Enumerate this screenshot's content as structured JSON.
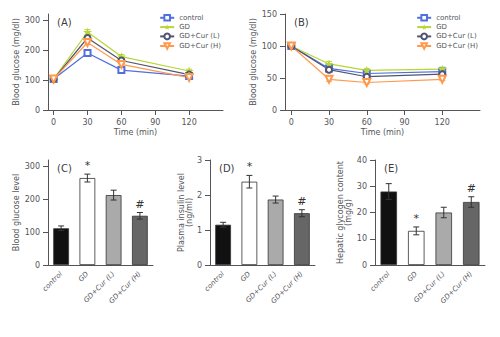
{
  "chart_data": [
    {
      "type": "line",
      "title": "(A)",
      "xlabel": "Time (min)",
      "ylabel": "Blood glucose (mg/dl)",
      "xlim": [
        -5,
        150
      ],
      "ylim": [
        0,
        320
      ],
      "xticks": [
        0,
        30,
        60,
        90,
        120
      ],
      "yticks": [
        0,
        100,
        200,
        300
      ],
      "x": [
        0,
        30,
        60,
        120
      ],
      "series": [
        {
          "name": "control",
          "marker": "square",
          "values": [
            103,
            190,
            133,
            113
          ],
          "errors": [
            3,
            8,
            5,
            5
          ]
        },
        {
          "name": "GD",
          "marker": "star",
          "values": [
            103,
            260,
            178,
            130
          ],
          "errors": [
            3,
            8,
            7,
            6
          ]
        },
        {
          "name": "GD+Cur (L)",
          "marker": "circle",
          "values": [
            103,
            240,
            165,
            118
          ],
          "errors": [
            3,
            7,
            6,
            5
          ]
        },
        {
          "name": "GD+Cur (H)",
          "marker": "triangle_down",
          "values": [
            103,
            225,
            152,
            108
          ],
          "errors": [
            3,
            6,
            6,
            4
          ]
        }
      ],
      "legend": "upper right",
      "grid": false
    },
    {
      "type": "line",
      "title": "(B)",
      "xlabel": "Time (min)",
      "ylabel": "Blood glucose (mg/dl)",
      "xlim": [
        -5,
        150
      ],
      "ylim": [
        0,
        150
      ],
      "xticks": [
        0,
        30,
        60,
        90,
        120
      ],
      "yticks": [
        0,
        50,
        100,
        150
      ],
      "x": [
        0,
        30,
        60,
        120
      ],
      "series": [
        {
          "name": "control",
          "marker": "square",
          "values": [
            100,
            65,
            57,
            60
          ],
          "errors": [
            2,
            3,
            3,
            3
          ]
        },
        {
          "name": "GD",
          "marker": "star",
          "values": [
            100,
            72,
            62,
            64
          ],
          "errors": [
            2,
            4,
            3,
            3
          ]
        },
        {
          "name": "GD+Cur (L)",
          "marker": "circle",
          "values": [
            100,
            63,
            52,
            56
          ],
          "errors": [
            2,
            3,
            3,
            3
          ]
        },
        {
          "name": "GD+Cur (H)",
          "marker": "triangle_down",
          "values": [
            100,
            48,
            43,
            48
          ],
          "errors": [
            2,
            3,
            2,
            2
          ]
        }
      ],
      "legend": "upper right",
      "grid": false
    },
    {
      "type": "bar",
      "title": "(C)",
      "ylabel": "Blood glucose level",
      "ylim": [
        0,
        320
      ],
      "yticks": [
        0,
        100,
        200,
        300
      ],
      "categories": [
        "control",
        "GD",
        "GD+Cur (L)",
        "GD+Cur (H)"
      ],
      "values": [
        112,
        265,
        213,
        150
      ],
      "errors": [
        7,
        12,
        15,
        10
      ],
      "colors": [
        "#111111",
        "#ffffff",
        "#aaaaaa",
        "#666666"
      ],
      "annotations": [
        null,
        "*",
        null,
        "#"
      ],
      "grid": false
    },
    {
      "type": "bar",
      "title": "(D)",
      "ylabel": "Plasma insulin level\n(ng/ml)",
      "ylim": [
        0,
        3.0
      ],
      "yticks": [
        0,
        1,
        2,
        3
      ],
      "categories": [
        "control",
        "GD",
        "GD+Cur (L)",
        "GD+Cur (H)"
      ],
      "values": [
        1.15,
        2.38,
        1.87,
        1.48
      ],
      "errors": [
        0.07,
        0.18,
        0.1,
        0.1
      ],
      "colors": [
        "#111111",
        "#ffffff",
        "#aaaaaa",
        "#666666"
      ],
      "annotations": [
        null,
        "*",
        null,
        "#"
      ],
      "grid": false
    },
    {
      "type": "bar",
      "title": "(E)",
      "ylabel": "Hepatic glycogen content\n(mg/g)",
      "ylim": [
        0,
        40
      ],
      "yticks": [
        0,
        10,
        20,
        30,
        40
      ],
      "categories": [
        "control",
        "GD",
        "GD+Cur (L)",
        "GD+Cur (H)"
      ],
      "values": [
        28,
        13,
        20,
        24
      ],
      "errors": [
        3,
        1.5,
        2,
        2
      ],
      "colors": [
        "#111111",
        "#ffffff",
        "#aaaaaa",
        "#666666"
      ],
      "annotations": [
        null,
        "*",
        null,
        "#"
      ],
      "grid": false
    }
  ]
}
